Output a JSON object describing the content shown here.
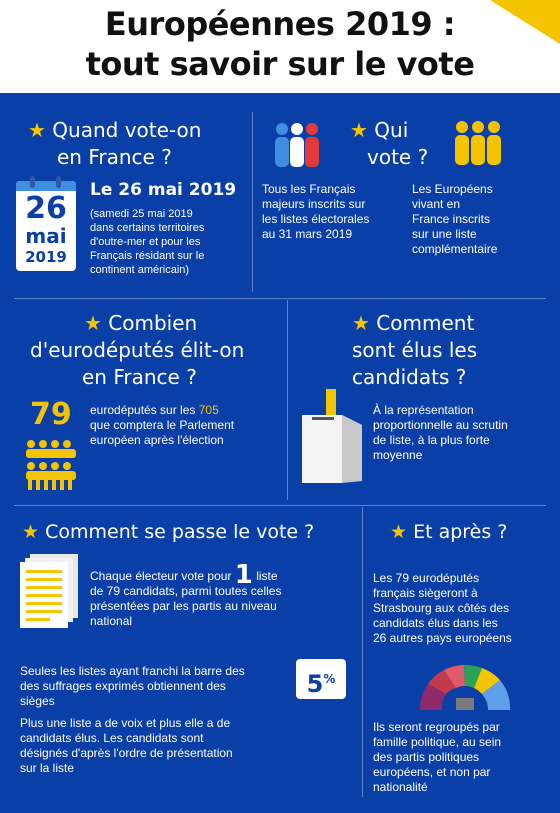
{
  "title": {
    "line1": "Européennes 2019 :",
    "line2": "tout savoir sur le vote"
  },
  "sections": {
    "quand": {
      "heading_line1": "Quand vote-on",
      "heading_line2": "en France ?",
      "calendar": {
        "day": "26",
        "month": "mai",
        "year": "2019"
      },
      "date": "Le 26 mai 2019",
      "note": [
        "(samedi 25 mai 2019",
        "dans certains territoires",
        "d'outre-mer et pour les",
        "Français résidant sur le",
        "continent américain)"
      ]
    },
    "qui": {
      "heading_line1": "Qui",
      "heading_line2": "vote ?",
      "col1": [
        "Tous les Français",
        "majeurs inscrits sur",
        "les listes électorales",
        "au 31 mars 2019"
      ],
      "col2": [
        "Les Européens",
        "vivant en",
        "France inscrits",
        "sur une liste",
        "complémentaire"
      ]
    },
    "combien": {
      "heading_line1": "Combien",
      "heading_line2": "d'eurodéputés élit-on",
      "heading_line3": "en France ?",
      "number": "79",
      "text_line1_a": "eurodéputés sur les ",
      "text_line1_b": "705",
      "text_line2": "que comptera le Parlement",
      "text_line3": "européen après l'élection"
    },
    "comment_elus": {
      "heading_line1": "Comment",
      "heading_line2": "sont élus les",
      "heading_line3": "candidats ?",
      "text": [
        "À la représentation",
        "proportionnelle au scrutin",
        "de liste, à la plus forte",
        "moyenne"
      ]
    },
    "comment_vote": {
      "heading": "Comment se passe le vote ?",
      "p1_a": "Chaque électeur vote pour ",
      "p1_num": "1",
      "p1_b": " liste",
      "p1_lines": [
        "de 79 candidats, parmi toutes celles",
        "présentées par les partis au niveau",
        "national"
      ],
      "p2": [
        "Seules les listes ayant franchi la barre des",
        "des suffrages exprimés obtiennent des",
        "sièges"
      ],
      "percent_num": "5",
      "percent_sign": "%",
      "p3": [
        "Plus une liste a de voix et plus elle a de",
        "candidats élus. Les candidats sont",
        "désignés d'après l'ordre de présentation",
        "sur la liste"
      ]
    },
    "apres": {
      "heading": "Et après ?",
      "p1": [
        "Les 79 eurodéputés",
        "français siègeront à",
        "Strasbourg aux côtés des",
        "candidats élus dans les",
        "26 autres pays européens"
      ],
      "p2": [
        "Ils seront regroupés par",
        "famille politique, au sein",
        "des partis politiques",
        "européens, et non par",
        "nationalité"
      ]
    }
  },
  "star": "★",
  "colors": {
    "background": "#0b3fa8",
    "accent": "#f5c400",
    "divider": "#5d7fcc"
  },
  "icons": [
    "calendar-icon",
    "people-icon",
    "ballot-box-icon",
    "documents-icon",
    "hemicycle-icon"
  ]
}
